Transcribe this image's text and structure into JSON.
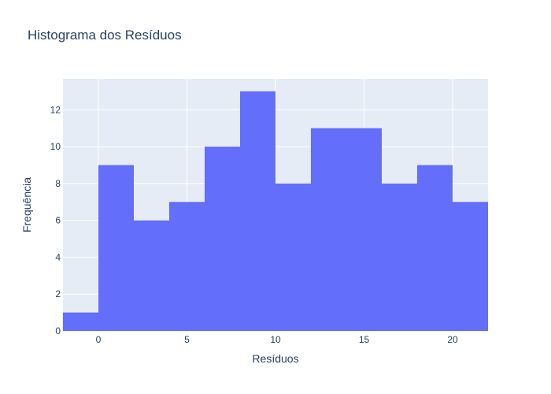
{
  "chart_data": {
    "type": "bar",
    "title": "Histograma dos Resíduos",
    "xlabel": "Resíduos",
    "ylabel": "Frequência",
    "xlim": [
      -2,
      22
    ],
    "ylim": [
      0,
      13.68
    ],
    "x_ticks": [
      0,
      5,
      10,
      15,
      20
    ],
    "y_ticks": [
      0,
      2,
      4,
      6,
      8,
      10,
      12
    ],
    "bin_width": 2,
    "bins": [
      {
        "x0": -2,
        "x1": 0,
        "count": 1
      },
      {
        "x0": 0,
        "x1": 2,
        "count": 9
      },
      {
        "x0": 2,
        "x1": 4,
        "count": 6
      },
      {
        "x0": 4,
        "x1": 6,
        "count": 7
      },
      {
        "x0": 6,
        "x1": 8,
        "count": 10
      },
      {
        "x0": 8,
        "x1": 10,
        "count": 13
      },
      {
        "x0": 10,
        "x1": 12,
        "count": 8
      },
      {
        "x0": 12,
        "x1": 14,
        "count": 11
      },
      {
        "x0": 14,
        "x1": 16,
        "count": 11
      },
      {
        "x0": 16,
        "x1": 18,
        "count": 8
      },
      {
        "x0": 18,
        "x1": 20,
        "count": 9
      },
      {
        "x0": 20,
        "x1": 22,
        "count": 7
      }
    ],
    "grid": true,
    "colors": {
      "bar": "#636efa",
      "plot_bg": "#e5ecf6",
      "grid": "#ffffff",
      "text": "#2a3f5f"
    }
  }
}
